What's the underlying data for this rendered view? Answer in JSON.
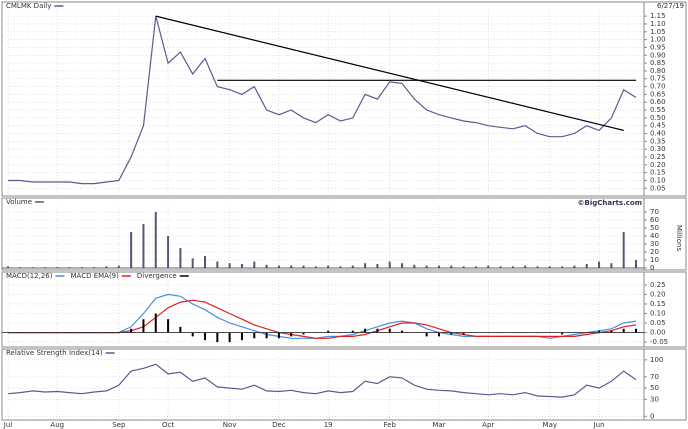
{
  "date": "6/27/19",
  "source": "©BigCharts.com",
  "categories": [
    "Jul",
    null,
    null,
    null,
    "Aug",
    null,
    null,
    null,
    null,
    "Sep",
    null,
    null,
    null,
    "Oct",
    null,
    null,
    null,
    null,
    "Nov",
    null,
    null,
    null,
    "Dec",
    null,
    null,
    null,
    "19",
    null,
    null,
    null,
    null,
    "Feb",
    null,
    null,
    null,
    "Mar",
    null,
    null,
    null,
    "Apr",
    null,
    null,
    null,
    null,
    "May",
    null,
    null,
    null,
    "Jun",
    null,
    null,
    null
  ],
  "chart_data": [
    {
      "type": "line",
      "series": [
        {
          "name": "CMLMK Daily",
          "color": "#5b5b8f",
          "values": [
            0.1,
            0.1,
            0.09,
            0.09,
            0.09,
            0.09,
            0.08,
            0.08,
            0.09,
            0.1,
            0.25,
            0.45,
            1.15,
            0.85,
            0.92,
            0.78,
            0.88,
            0.7,
            0.68,
            0.65,
            0.7,
            0.55,
            0.52,
            0.55,
            0.5,
            0.47,
            0.52,
            0.48,
            0.5,
            0.65,
            0.62,
            0.73,
            0.72,
            0.62,
            0.55,
            0.52,
            0.5,
            0.48,
            0.47,
            0.45,
            0.44,
            0.43,
            0.45,
            0.4,
            0.38,
            0.38,
            0.4,
            0.45,
            0.42,
            0.5,
            0.68,
            0.63
          ]
        }
      ],
      "lines": [
        {
          "x": [
            12,
            50
          ],
          "y": [
            1.15,
            0.42
          ]
        },
        {
          "x": [
            17,
            51
          ],
          "y": [
            0.74,
            0.74
          ]
        }
      ],
      "ylim": [
        0.02,
        1.17
      ],
      "yticks": [
        1.15,
        {
          "value": 1.1,
          "label": "1.10"
        },
        1.05,
        {
          "value": 1,
          "label": "1.00"
        },
        0.95,
        {
          "value": 0.9,
          "label": "0.90"
        },
        0.85,
        {
          "value": 0.8,
          "label": "0.80"
        },
        0.75,
        {
          "value": 0.7,
          "label": "0.70"
        },
        0.65,
        {
          "value": 0.6,
          "label": "0.60"
        },
        0.55,
        {
          "value": 0.5,
          "label": "0.50"
        },
        0.45,
        {
          "value": 0.4,
          "label": "0.40"
        },
        0.35,
        {
          "value": 0.3,
          "label": "0.30"
        },
        0.25,
        {
          "value": 0.2,
          "label": "0.20"
        },
        0.15,
        {
          "value": 0.1,
          "label": "0.10"
        },
        0.05
      ],
      "grid": true
    },
    {
      "type": "bar",
      "series": [
        {
          "name": "Volume",
          "color": "#555577",
          "values": [
            2,
            1,
            1,
            1,
            1,
            1,
            1,
            1,
            2,
            3,
            45,
            55,
            70,
            40,
            25,
            12,
            15,
            8,
            6,
            5,
            8,
            4,
            3,
            3,
            3,
            2,
            3,
            2,
            3,
            6,
            5,
            8,
            6,
            4,
            3,
            3,
            3,
            2,
            2,
            3,
            2,
            2,
            3,
            2,
            2,
            2,
            3,
            5,
            8,
            6,
            45,
            10
          ]
        }
      ],
      "y_label": "Millions",
      "ylim": [
        0,
        75
      ],
      "yticks": [
        70,
        60,
        50,
        40,
        30,
        20,
        10,
        0
      ],
      "grid": true
    },
    {
      "type": "line",
      "series": [
        {
          "name": "MACD(12,26)",
          "color": "#4a8fe0",
          "values": [
            0,
            0,
            0,
            0,
            0,
            0,
            0,
            0,
            0,
            0,
            0.03,
            0.1,
            0.18,
            0.2,
            0.19,
            0.15,
            0.12,
            0.08,
            0.05,
            0.03,
            0.01,
            -0.01,
            -0.02,
            -0.03,
            -0.03,
            -0.03,
            -0.02,
            -0.02,
            -0.01,
            0.01,
            0.03,
            0.05,
            0.06,
            0.05,
            0.02,
            0,
            -0.01,
            -0.02,
            -0.02,
            -0.02,
            -0.02,
            -0.02,
            -0.02,
            -0.02,
            -0.03,
            -0.02,
            -0.01,
            0,
            0.01,
            0.02,
            0.05,
            0.06
          ]
        },
        {
          "name": "MACD EMA(9)",
          "color": "#e02020",
          "values": [
            0,
            0,
            0,
            0,
            0,
            0,
            0,
            0,
            0,
            0,
            0.01,
            0.03,
            0.08,
            0.13,
            0.16,
            0.17,
            0.16,
            0.13,
            0.1,
            0.07,
            0.04,
            0.02,
            0,
            -0.01,
            -0.02,
            -0.03,
            -0.03,
            -0.02,
            -0.02,
            -0.01,
            0.01,
            0.03,
            0.05,
            0.05,
            0.04,
            0.02,
            0,
            -0.01,
            -0.02,
            -0.02,
            -0.02,
            -0.02,
            -0.02,
            -0.02,
            -0.02,
            -0.02,
            -0.02,
            -0.01,
            0,
            0.01,
            0.03,
            0.04
          ]
        },
        {
          "name": "Divergence",
          "color": "#000000",
          "type": "bar",
          "values": [
            0,
            0,
            0,
            0,
            0,
            0,
            0,
            0,
            0,
            0,
            0.02,
            0.07,
            0.1,
            0.07,
            0.03,
            -0.02,
            -0.04,
            -0.05,
            -0.05,
            -0.04,
            -0.03,
            -0.03,
            -0.03,
            -0.02,
            -0.01,
            0,
            0.01,
            0,
            0.01,
            0.02,
            0.02,
            0.02,
            0.01,
            0,
            -0.02,
            -0.02,
            -0.01,
            -0.01,
            0,
            0,
            0,
            0,
            0,
            0,
            0,
            -0.01,
            0,
            0,
            0.01,
            0.01,
            0.02,
            0.02
          ]
        }
      ],
      "ylim": [
        -0.06,
        0.26
      ],
      "yticks": [
        0.25,
        {
          "value": 0.2,
          "label": "0.20"
        },
        0.15,
        {
          "value": 0.1,
          "label": "0.10"
        },
        0.05,
        {
          "value": 0,
          "label": "0.00"
        },
        -0.05
      ],
      "grid": true
    },
    {
      "type": "line",
      "series": [
        {
          "name": "Relative Strength Index(14)",
          "color": "#5b5b8f",
          "values": [
            40,
            42,
            45,
            43,
            44,
            42,
            40,
            43,
            45,
            55,
            80,
            85,
            92,
            75,
            78,
            62,
            68,
            52,
            50,
            48,
            55,
            45,
            44,
            46,
            42,
            40,
            45,
            42,
            44,
            62,
            58,
            70,
            68,
            55,
            48,
            46,
            45,
            42,
            40,
            38,
            40,
            38,
            42,
            36,
            35,
            34,
            38,
            55,
            50,
            62,
            80,
            65
          ]
        }
      ],
      "ylim": [
        -3,
        105
      ],
      "yticks": [
        100,
        70,
        50,
        30,
        0
      ],
      "grid": true
    }
  ]
}
